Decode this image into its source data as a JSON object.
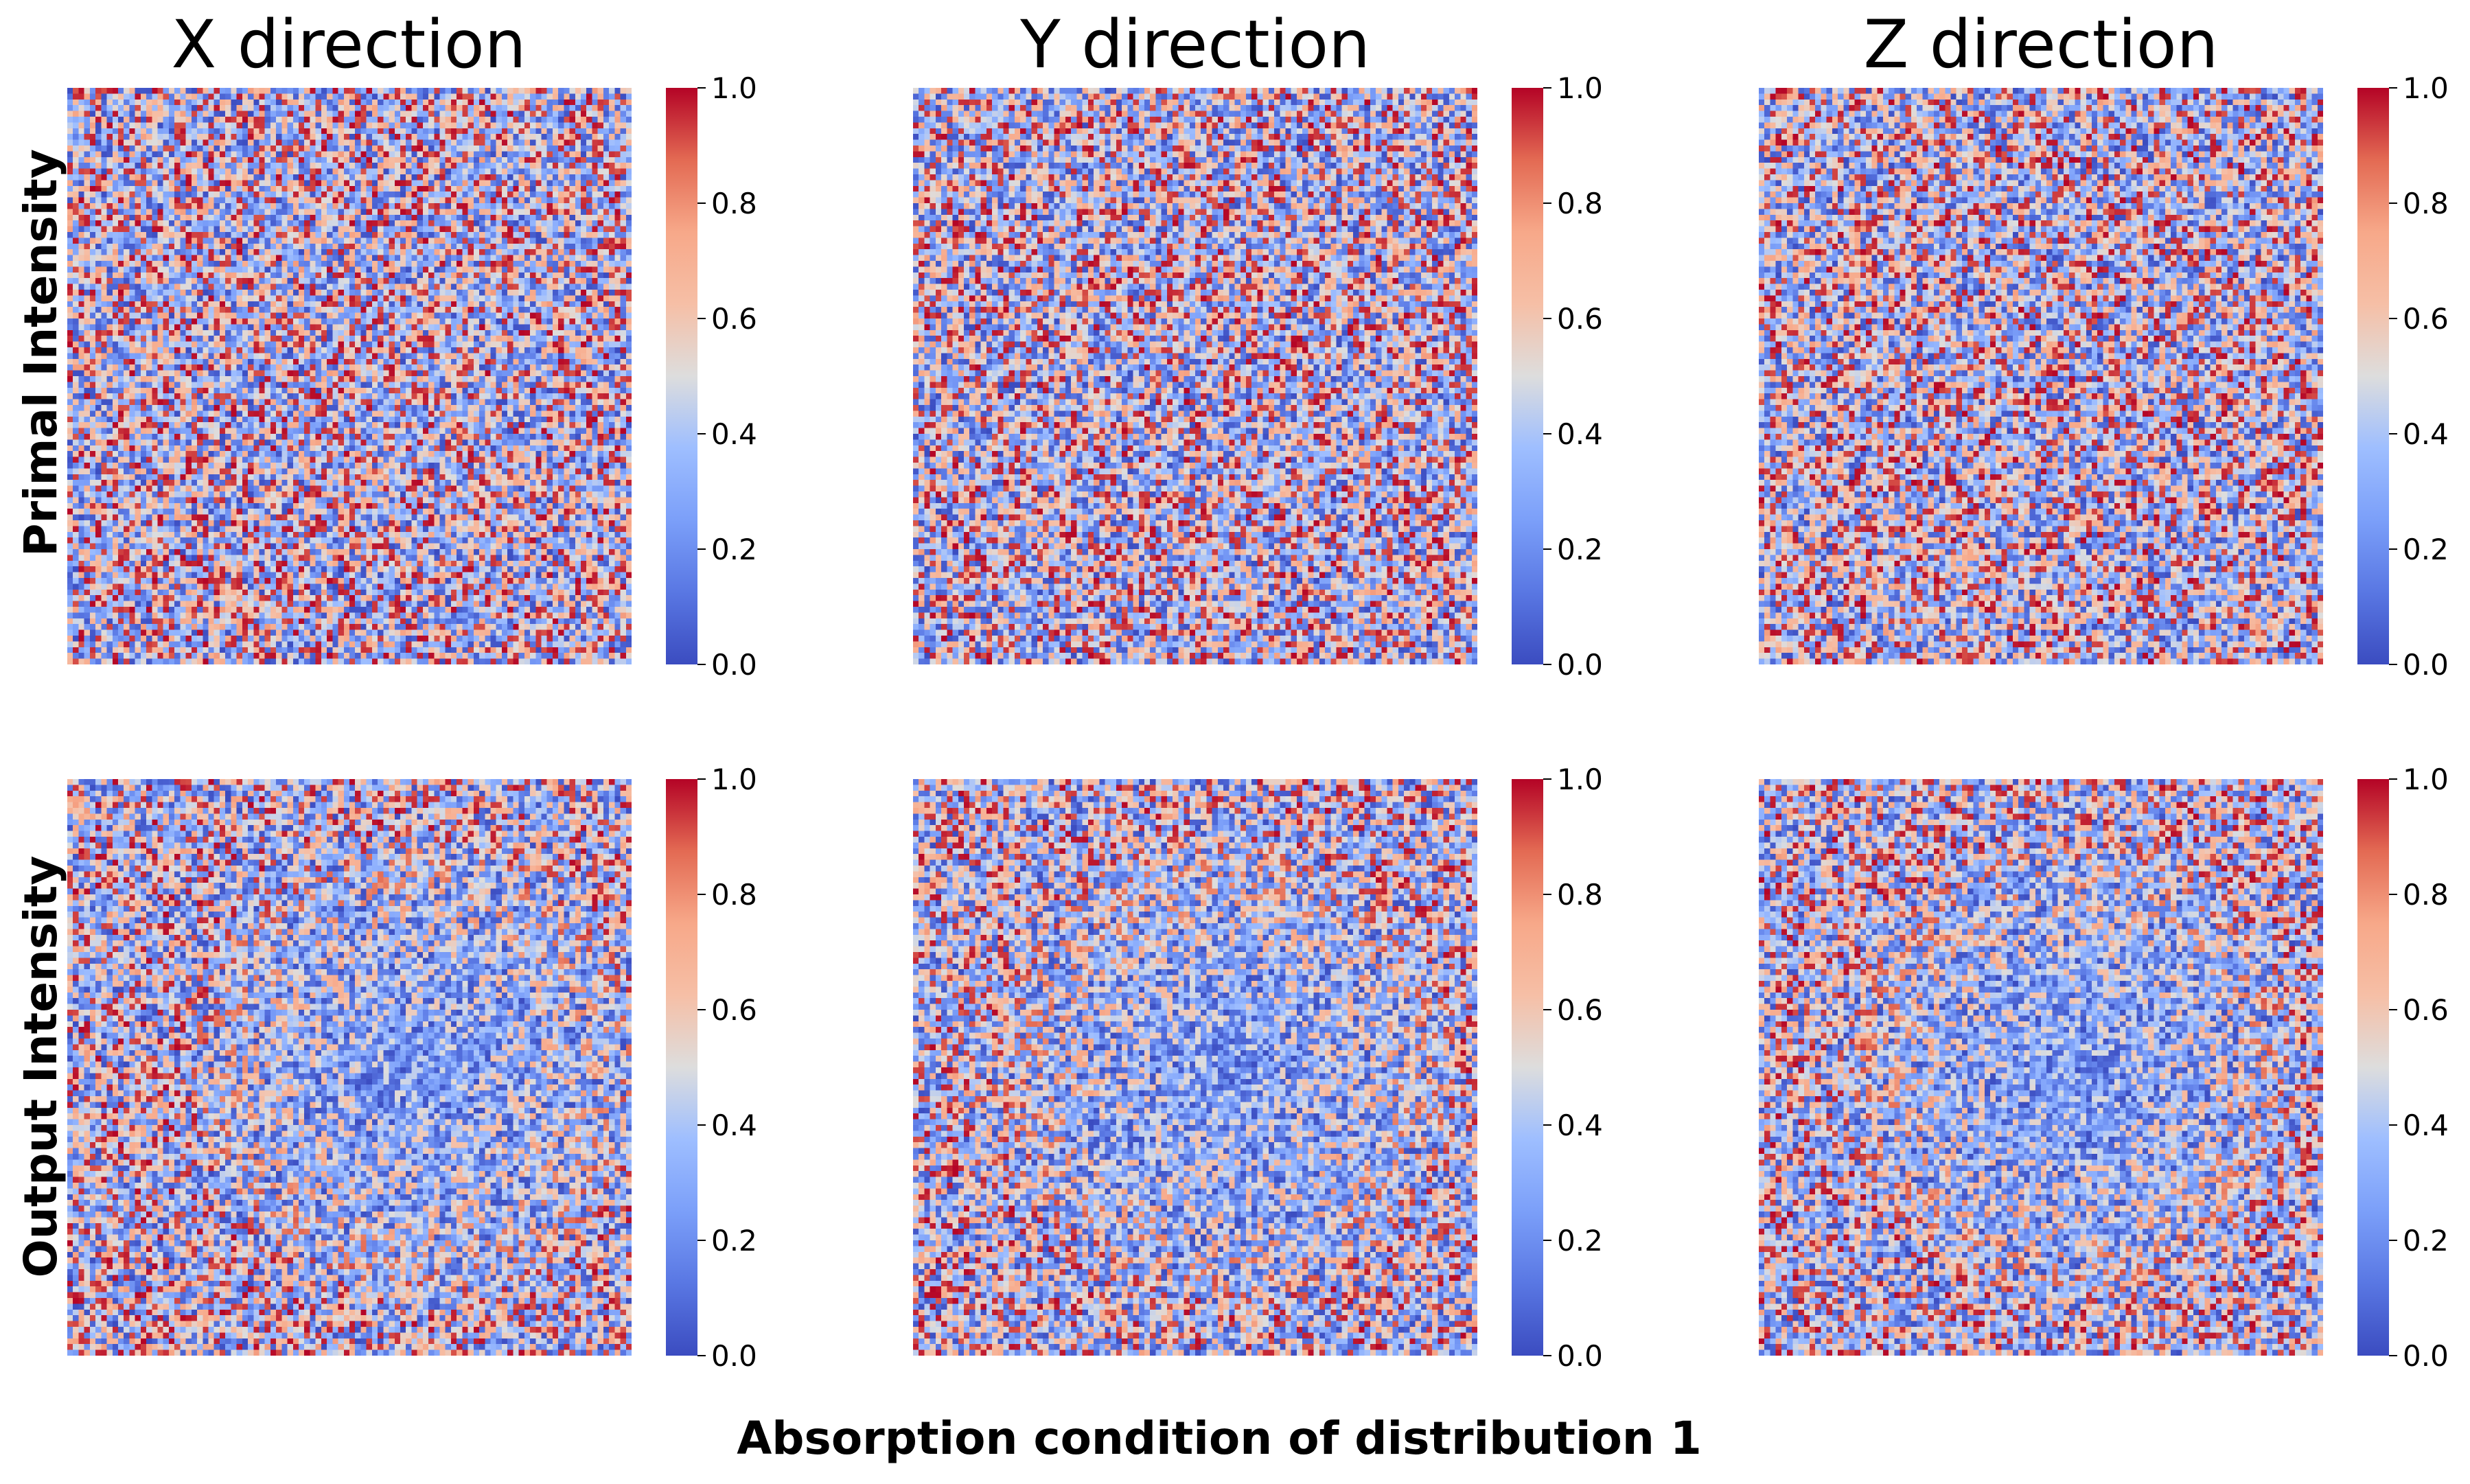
{
  "chart_data": [
    {
      "type": "heatmap",
      "title": "X direction",
      "ylabel": "Primal Intensity",
      "vmin": 0.0,
      "vmax": 1.0,
      "colormap": "coolwarm",
      "grid_size": [
        100,
        100
      ],
      "colorbar_ticks": [
        "0.0",
        "0.2",
        "0.4",
        "0.6",
        "0.8",
        "1.0"
      ]
    },
    {
      "type": "heatmap",
      "title": "Y direction",
      "vmin": 0.0,
      "vmax": 1.0,
      "colormap": "coolwarm",
      "grid_size": [
        100,
        100
      ],
      "colorbar_ticks": [
        "0.0",
        "0.2",
        "0.4",
        "0.6",
        "0.8",
        "1.0"
      ]
    },
    {
      "type": "heatmap",
      "title": "Z direction",
      "vmin": 0.0,
      "vmax": 1.0,
      "colormap": "coolwarm",
      "grid_size": [
        100,
        100
      ],
      "colorbar_ticks": [
        "0.0",
        "0.2",
        "0.4",
        "0.6",
        "0.8",
        "1.0"
      ]
    },
    {
      "type": "heatmap",
      "ylabel": "Output Intensity",
      "vmin": 0.0,
      "vmax": 1.0,
      "colormap": "coolwarm",
      "grid_size": [
        100,
        100
      ],
      "colorbar_ticks": [
        "0.0",
        "0.2",
        "0.4",
        "0.6",
        "0.8",
        "1.0"
      ]
    },
    {
      "type": "heatmap",
      "vmin": 0.0,
      "vmax": 1.0,
      "colormap": "coolwarm",
      "grid_size": [
        100,
        100
      ],
      "colorbar_ticks": [
        "0.0",
        "0.2",
        "0.4",
        "0.6",
        "0.8",
        "1.0"
      ]
    },
    {
      "type": "heatmap",
      "vmin": 0.0,
      "vmax": 1.0,
      "colormap": "coolwarm",
      "grid_size": [
        100,
        100
      ],
      "colorbar_ticks": [
        "0.0",
        "0.2",
        "0.4",
        "0.6",
        "0.8",
        "1.0"
      ]
    }
  ],
  "figure": {
    "column_titles": [
      "X direction",
      "Y direction",
      "Z direction"
    ],
    "row_labels": [
      "Primal Intensity",
      "Output Intensity"
    ],
    "xlabel": "Absorption condition of distribution 1"
  },
  "colors": {
    "cold": "#3b4cc0",
    "neutral": "#dddddd",
    "warm": "#b40426"
  }
}
